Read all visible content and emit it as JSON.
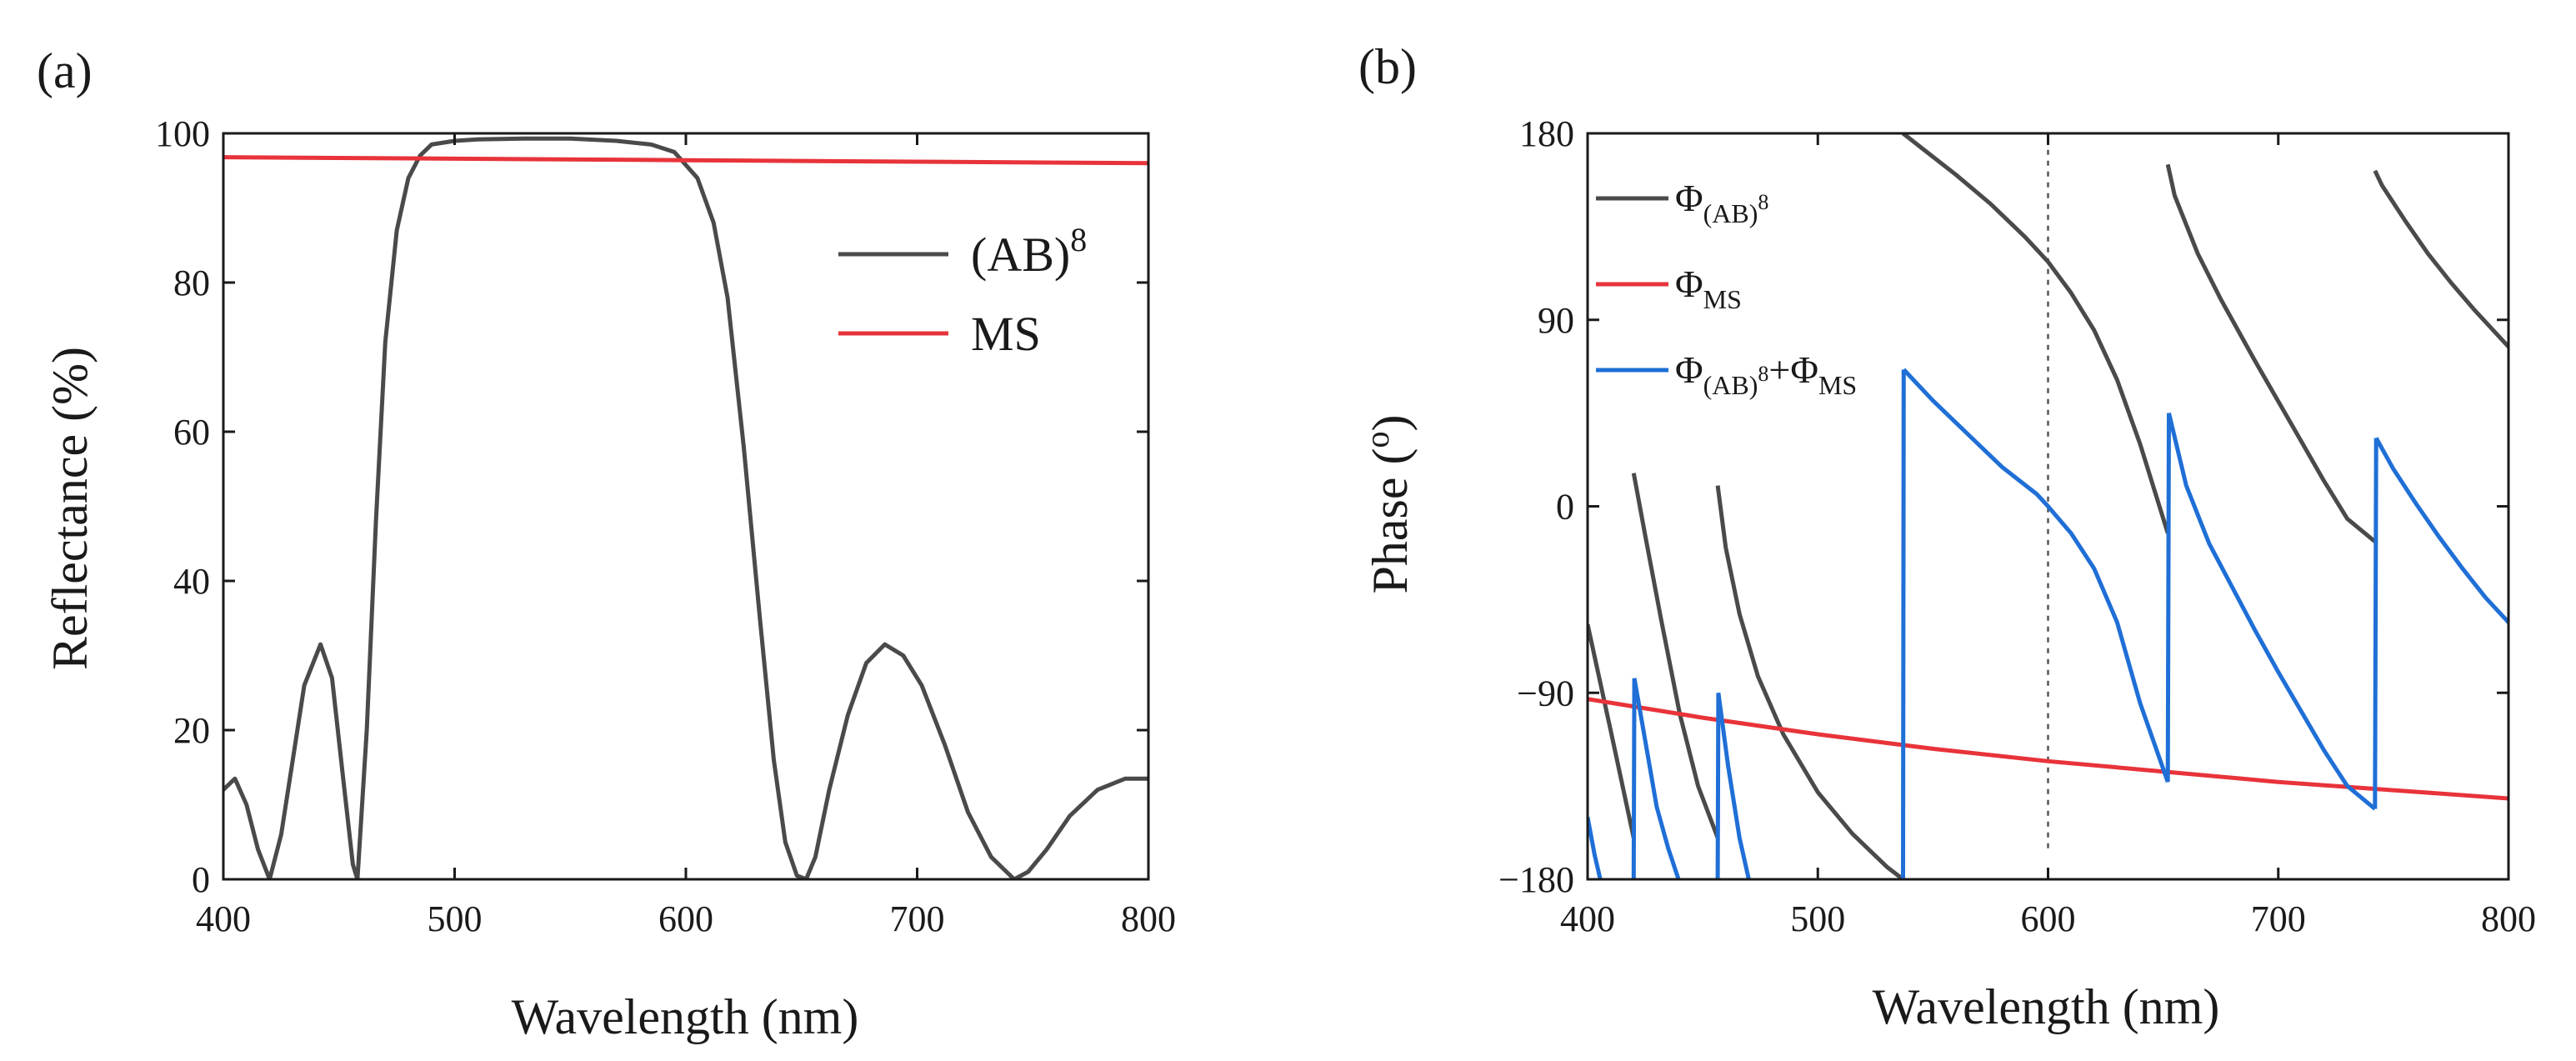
{
  "panels": {
    "a": {
      "label": "(a)"
    },
    "b": {
      "label": "(b)"
    }
  },
  "chart_data": [
    {
      "id": "a",
      "type": "line",
      "title": "",
      "xlabel": "Wavelength (nm)",
      "ylabel": "Reflectance (%)",
      "xlim": [
        400,
        800
      ],
      "ylim": [
        0,
        100
      ],
      "xticks": [
        400,
        500,
        600,
        700,
        800
      ],
      "yticks": [
        0,
        20,
        40,
        60,
        80,
        100
      ],
      "grid": false,
      "legend_position": "top-right",
      "series": [
        {
          "name": "(AB)8",
          "legend_base": "(AB)",
          "legend_sup": "8",
          "color": "#4a4a4a",
          "x": [
            400,
            405,
            410,
            415,
            420,
            425,
            430,
            435,
            442,
            447,
            452,
            456,
            458,
            462,
            466,
            470,
            475,
            480,
            485,
            490,
            500,
            510,
            530,
            550,
            570,
            585,
            595,
            605,
            612,
            618,
            625,
            632,
            638,
            643,
            648,
            652,
            656,
            662,
            670,
            678,
            686,
            694,
            702,
            712,
            722,
            732,
            742,
            748,
            756,
            766,
            778,
            790,
            800
          ],
          "y": [
            12,
            13.5,
            10,
            4,
            0,
            6,
            16,
            26,
            31.5,
            27,
            13,
            2,
            0,
            20,
            48,
            72,
            87,
            94,
            97,
            98.5,
            99,
            99.2,
            99.3,
            99.3,
            99,
            98.5,
            97.5,
            94,
            88,
            78,
            58,
            35,
            16,
            5,
            0.5,
            0,
            3,
            12,
            22,
            29,
            31.5,
            30,
            26,
            18,
            9,
            3,
            0,
            1,
            4,
            8.5,
            12,
            13.5,
            13.5
          ]
        },
        {
          "name": "MS",
          "legend_base": "MS",
          "legend_sup": "",
          "color": "#e8333a",
          "x": [
            400,
            500,
            600,
            700,
            800
          ],
          "y": [
            96.8,
            96.6,
            96.4,
            96.2,
            96.0
          ]
        }
      ]
    },
    {
      "id": "b",
      "type": "line",
      "title": "",
      "xlabel": "Wavelength (nm)",
      "ylabel": "Phase (o)",
      "ylabel_base": "Phase (",
      "ylabel_sup": "o",
      "ylabel_close": ")",
      "xlim": [
        400,
        800
      ],
      "ylim": [
        -180,
        180
      ],
      "xticks": [
        400,
        500,
        600,
        700,
        800
      ],
      "yticks": [
        -180,
        -90,
        0,
        90,
        180
      ],
      "ytick_labels": [
        "−180",
        "−90",
        "0",
        "90",
        "180"
      ],
      "grid": false,
      "legend_position": "top-left",
      "reference_line": {
        "x": 600,
        "style": "dotted",
        "y_from": -165,
        "y_to": 180
      },
      "series": [
        {
          "name": "Φ(AB)8",
          "legend_parts": [
            {
              "t": "Φ"
            },
            {
              "t": "(AB)",
              "sub": true
            },
            {
              "t": "8",
              "subsup": true
            }
          ],
          "color": "#4a4a4a",
          "segments": [
            {
              "x": [
                400,
                410,
                420
              ],
              "y": [
                -57,
                -108,
                -160
              ]
            },
            {
              "x": [
                420,
                425,
                432,
                440,
                448,
                456.5
              ],
              "y": [
                16,
                -14,
                -55,
                -100,
                -135,
                -160
              ]
            },
            {
              "x": [
                456.5,
                460,
                466,
                474,
                485,
                500,
                515,
                530,
                537
              ],
              "y": [
                10,
                -20,
                -52,
                -82,
                -110,
                -138,
                -158,
                -174,
                -180
              ]
            },
            {
              "x": [
                537,
                545,
                560,
                575,
                590,
                600,
                610,
                620,
                630,
                640,
                652
              ],
              "y": [
                180,
                173,
                160,
                146,
                130,
                118,
                103,
                85,
                61,
                30,
                -13
              ]
            },
            {
              "x": [
                652,
                655,
                665,
                675,
                690,
                705,
                720,
                730,
                742
              ],
              "y": [
                165,
                150,
                122,
                100,
                70,
                41,
                12,
                -6,
                -17
              ]
            },
            {
              "x": [
                742,
                745,
                755,
                765,
                775,
                785,
                800
              ],
              "y": [
                162,
                155,
                138,
                122,
                108,
                95,
                77
              ]
            }
          ]
        },
        {
          "name": "ΦMS",
          "legend_parts": [
            {
              "t": "Φ"
            },
            {
              "t": "MS",
              "sub": true
            }
          ],
          "color": "#e8333a",
          "segments": [
            {
              "x": [
                400,
                450,
                500,
                550,
                600,
                650,
                700,
                750,
                800
              ],
              "y": [
                -93,
                -102,
                -110,
                -117,
                -123,
                -128,
                -133,
                -137,
                -141
              ]
            }
          ]
        },
        {
          "name": "Φ(AB)8+ΦMS",
          "legend_parts": [
            {
              "t": "Φ"
            },
            {
              "t": "(AB)",
              "sub": true
            },
            {
              "t": "8",
              "subsup": true
            },
            {
              "t": "+Φ"
            },
            {
              "t": "MS",
              "sub": true
            }
          ],
          "color": "#1f6fd6",
          "segments": [
            {
              "x": [
                400,
                403,
                405.5
              ],
              "y": [
                -150,
                -168,
                -180
              ]
            },
            {
              "x": [
                420,
                420.3
              ],
              "y": [
                -180,
                -83
              ]
            },
            {
              "x": [
                420.3,
                425,
                430,
                435,
                439.5
              ],
              "y": [
                -83,
                -113,
                -145,
                -165,
                -180
              ]
            },
            {
              "x": [
                456.5,
                456.8
              ],
              "y": [
                -180,
                -90
              ]
            },
            {
              "x": [
                456.8,
                461,
                466,
                470
              ],
              "y": [
                -90,
                -125,
                -160,
                -180
              ]
            },
            {
              "x": [
                537,
                537.3
              ],
              "y": [
                -180,
                66
              ]
            },
            {
              "x": [
                537.3,
                550,
                565,
                580,
                595,
                600,
                610,
                620,
                630,
                640,
                652
              ],
              "y": [
                66,
                51,
                35,
                19,
                6,
                0,
                -13,
                -30,
                -56,
                -95,
                -133
              ]
            },
            {
              "x": [
                652,
                652.5
              ],
              "y": [
                -133,
                45
              ]
            },
            {
              "x": [
                652.5,
                660,
                670,
                680,
                690,
                700,
                710,
                720,
                730,
                742
              ],
              "y": [
                45,
                10,
                -18,
                -39,
                -60,
                -80,
                -99,
                -118,
                -135,
                -146
              ]
            },
            {
              "x": [
                742,
                742.5
              ],
              "y": [
                -146,
                33
              ]
            },
            {
              "x": [
                742.5,
                750,
                760,
                770,
                780,
                790,
                800
              ],
              "y": [
                33,
                18,
                1,
                -15,
                -30,
                -44,
                -56
              ]
            }
          ]
        }
      ]
    }
  ]
}
